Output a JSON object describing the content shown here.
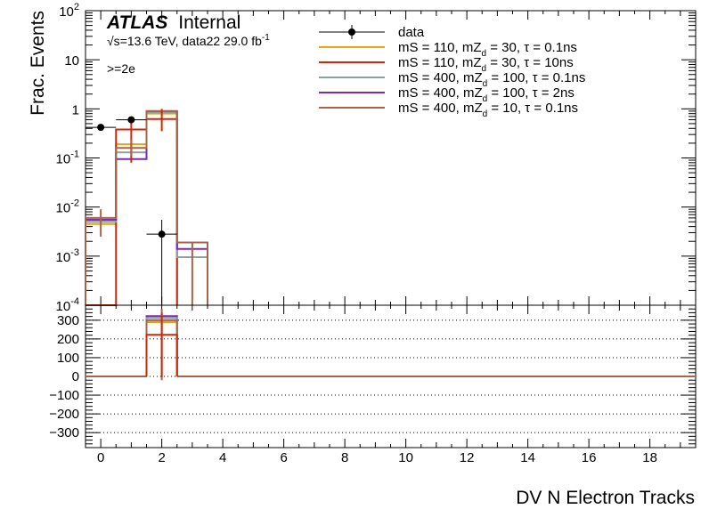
{
  "figure": {
    "experiment": "ATLAS",
    "status": "Internal",
    "energy_line_sqrt": "√s",
    "energy_line_rest": "=13.6 TeV, data22 29.0 fb",
    "energy_line_sup": "-1",
    "selection": ">=2e",
    "xlabel": "DV N Electron Tracks"
  },
  "chart_data": [
    {
      "type": "line",
      "drawstyle": "step",
      "panel": "main",
      "ylabel": "Frac. Events",
      "yscale": "log",
      "ylim": [
        0.0001,
        100
      ],
      "y_ticks": [
        {
          "base": "10",
          "exp": "-4"
        },
        {
          "base": "10",
          "exp": "-3"
        },
        {
          "base": "10",
          "exp": "-2"
        },
        {
          "base": "10",
          "exp": "-1"
        },
        {
          "base": "1",
          "exp": ""
        },
        {
          "base": "10",
          "exp": ""
        },
        {
          "base": "10",
          "exp": "2"
        }
      ],
      "xlim": [
        -0.5,
        19.5
      ],
      "x_ticks": [
        "0",
        "2",
        "4",
        "6",
        "8",
        "10",
        "12",
        "14",
        "16",
        "18"
      ],
      "legend_position": "top-right",
      "series": [
        {
          "name": "data",
          "kind": "points",
          "color": "#000000",
          "points": [
            {
              "x": 0,
              "y": 0.42,
              "ylo": 0.42,
              "yhi": 0.42
            },
            {
              "x": 1,
              "y": 0.6,
              "ylo": 0.6,
              "yhi": 0.6
            },
            {
              "x": 2,
              "y": 0.0028,
              "ylo": 0.0001,
              "yhi": 0.0055
            }
          ]
        },
        {
          "name_parts": [
            "mS = 110, mZ",
            "d",
            " = 30, τ = 0.1ns"
          ],
          "color": "#e6a417",
          "bins": [
            {
              "x": 0,
              "y": 0.0045
            },
            {
              "x": 1,
              "y": 0.19
            },
            {
              "x": 2,
              "y": 0.8
            }
          ]
        },
        {
          "name_parts": [
            "mS = 110, mZ",
            "d",
            " = 30, τ = 10ns"
          ],
          "color": "#c92b0b",
          "bins": [
            {
              "x": 0,
              "y": 0.0001
            },
            {
              "x": 1,
              "y": 0.38
            },
            {
              "x": 2,
              "y": 0.62
            }
          ]
        },
        {
          "name_parts": [
            "mS = 400, mZ",
            "d",
            " = 100, τ = 0.1ns"
          ],
          "color": "#8fa0a0",
          "bins": [
            {
              "x": 0,
              "y": 0.005
            },
            {
              "x": 1,
              "y": 0.13
            },
            {
              "x": 2,
              "y": 0.85
            },
            {
              "x": 3,
              "y": 0.00095
            }
          ]
        },
        {
          "name_parts": [
            "mS = 400, mZ",
            "d",
            " = 100, τ = 2ns"
          ],
          "color": "#7a2ab4",
          "bins": [
            {
              "x": 0,
              "y": 0.0055
            },
            {
              "x": 1,
              "y": 0.095
            },
            {
              "x": 2,
              "y": 0.9
            },
            {
              "x": 3,
              "y": 0.0014
            }
          ]
        },
        {
          "name_parts": [
            "mS = 400, mZ",
            "d",
            " = 10, τ = 0.1ns"
          ],
          "color": "#a8644a",
          "bins": [
            {
              "x": 0,
              "y": 0.006
            },
            {
              "x": 1,
              "y": 0.16
            },
            {
              "x": 2,
              "y": 0.9
            },
            {
              "x": 3,
              "y": 0.0019
            }
          ]
        }
      ]
    },
    {
      "type": "line",
      "drawstyle": "step",
      "panel": "ratio",
      "ylim": [
        -380,
        380
      ],
      "y_ticks": [
        -300,
        -200,
        -100,
        0,
        100,
        200,
        300
      ],
      "grid": "dotted horizontal",
      "xlim": [
        -0.5,
        19.5
      ],
      "x_ticks": [
        "0",
        "2",
        "4",
        "6",
        "8",
        "10",
        "12",
        "14",
        "16",
        "18"
      ],
      "series": [
        {
          "color": "#7a2ab4",
          "bins": [
            {
              "x": 2,
              "y": 322
            }
          ]
        },
        {
          "color": "#8fa0a0",
          "bins": [
            {
              "x": 2,
              "y": 312
            }
          ]
        },
        {
          "color": "#e6a417",
          "bins": [
            {
              "x": 2,
              "y": 290
            }
          ]
        },
        {
          "color": "#a8644a",
          "bins": [
            {
              "x": 2,
              "y": 300
            }
          ]
        },
        {
          "color": "#c92b0b",
          "bins": [
            {
              "x": 2,
              "y": 222
            }
          ]
        }
      ],
      "error_bars": [
        {
          "x": 2,
          "y": 300,
          "ylo": -20,
          "yhi": 360,
          "color": "#a8644a"
        },
        {
          "x": 2,
          "y": 222,
          "ylo": -5,
          "yhi": 340,
          "color": "#c92b0b"
        }
      ]
    }
  ]
}
